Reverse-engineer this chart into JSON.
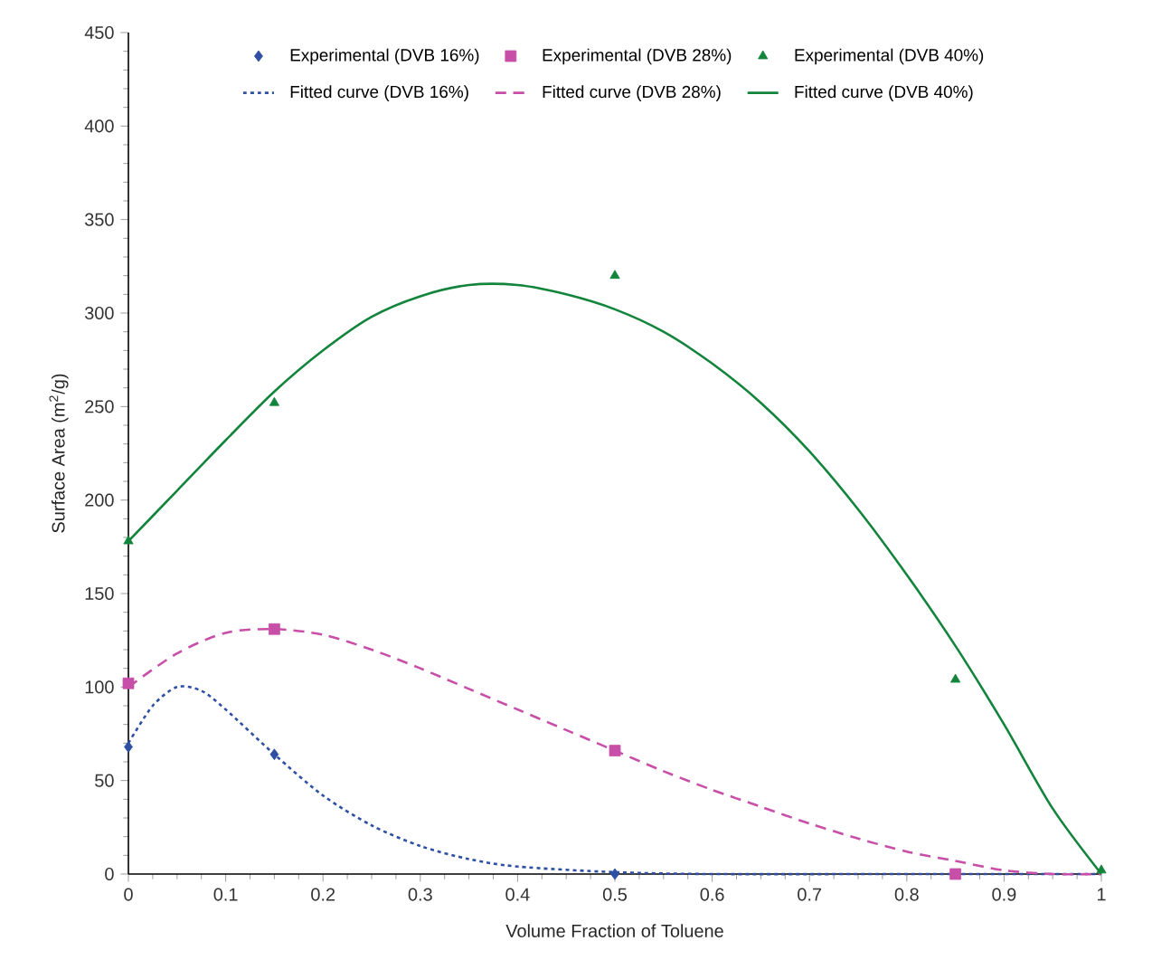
{
  "chart_data": {
    "type": "scatter",
    "xlabel": "Volume Fraction of Toluene",
    "ylabel": "Surface Area (m$^{2}$/g)",
    "xlim": [
      0,
      1
    ],
    "ylim": [
      0,
      450
    ],
    "xticks": [
      0,
      0.1,
      0.2,
      0.3,
      0.4,
      0.5,
      0.6,
      0.7,
      0.8,
      0.9,
      1
    ],
    "yticks": [
      0,
      50,
      100,
      150,
      200,
      250,
      300,
      350,
      400,
      450
    ],
    "grid": false,
    "legend": "top",
    "series": [
      {
        "name": "Experimental (DVB 16%)",
        "marker": "diamond",
        "color": "#2e4fa3",
        "x": [
          0,
          0.15,
          0.5
        ],
        "values": [
          68,
          64,
          0
        ]
      },
      {
        "name": "Experimental (DVB 28%)",
        "marker": "square",
        "color": "#c84fa8",
        "x": [
          0,
          0.15,
          0.5,
          0.85
        ],
        "values": [
          102,
          131,
          66,
          0
        ]
      },
      {
        "name": "Experimental (DVB 40%)",
        "marker": "triangle",
        "color": "#13843c",
        "x": [
          0,
          0.15,
          0.5,
          0.85,
          1
        ],
        "values": [
          178,
          252,
          320,
          104,
          2
        ]
      },
      {
        "name": "Fitted curve  (DVB 16%)",
        "type": "line",
        "line_style": "dotted",
        "marker": "none",
        "color": "#2e4fa3",
        "x": [
          0,
          0.025,
          0.05,
          0.075,
          0.1,
          0.15,
          0.2,
          0.25,
          0.3,
          0.35,
          0.4,
          0.5,
          0.6,
          0.8,
          1
        ],
        "values": [
          70,
          90,
          100,
          98,
          88,
          64,
          42,
          26,
          15,
          8,
          4,
          1,
          0,
          0,
          0
        ]
      },
      {
        "name": "Fitted curve  (DVB 28%)",
        "type": "line",
        "line_style": "dashed",
        "marker": "none",
        "color": "#c84fa8",
        "x": [
          0,
          0.05,
          0.1,
          0.15,
          0.2,
          0.25,
          0.3,
          0.35,
          0.4,
          0.45,
          0.5,
          0.55,
          0.6,
          0.65,
          0.7,
          0.75,
          0.8,
          0.85,
          0.9,
          0.95,
          1
        ],
        "values": [
          100,
          118,
          129,
          131,
          128,
          120,
          110,
          99,
          88,
          77,
          66,
          55,
          45,
          36,
          27,
          19,
          12,
          7,
          2,
          0,
          0
        ]
      },
      {
        "name": "Fitted curve  (DVB 40%)",
        "type": "line",
        "line_style": "solid",
        "marker": "none",
        "color": "#13843c",
        "x": [
          0,
          0.05,
          0.1,
          0.15,
          0.2,
          0.25,
          0.3,
          0.35,
          0.4,
          0.45,
          0.5,
          0.55,
          0.6,
          0.65,
          0.7,
          0.75,
          0.8,
          0.85,
          0.9,
          0.95,
          1
        ],
        "values": [
          178,
          205,
          232,
          258,
          280,
          298,
          309,
          315,
          315,
          310,
          302,
          290,
          273,
          252,
          226,
          195,
          160,
          122,
          80,
          35,
          0
        ]
      }
    ]
  }
}
